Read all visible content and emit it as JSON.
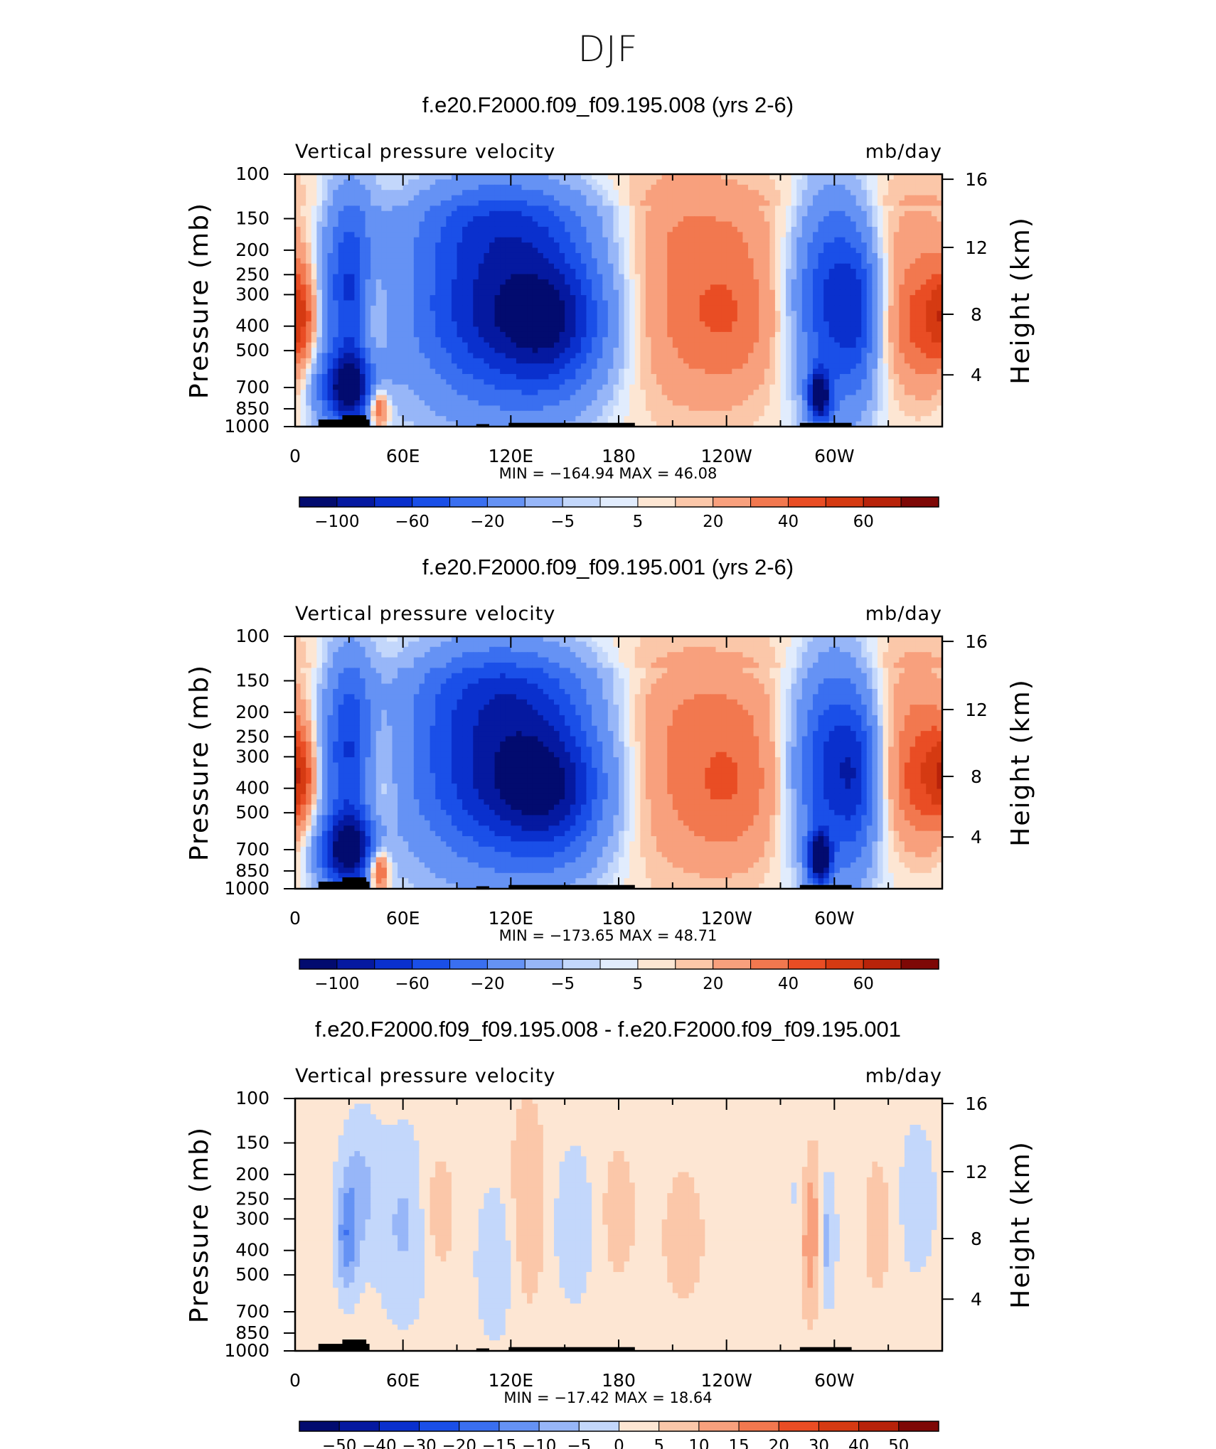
{
  "page_title": "DJF",
  "panel_subtitle": "Vertical pressure velocity",
  "panel_units": "mb/day",
  "chart_data": [
    {
      "type": "heatmap",
      "title": "f.e20.F2000.f09_f09.195.008 (yrs 2-6)",
      "subtitle_left": "Vertical pressure velocity",
      "subtitle_right": "mb/day",
      "ylabel": "Pressure (mb)",
      "ylabel_right": "Height (km)",
      "x_ticks": [
        "0",
        "60E",
        "120E",
        "180",
        "120W",
        "60W"
      ],
      "y_ticks": [
        "100",
        "150",
        "200",
        "250",
        "300",
        "400",
        "500",
        "700",
        "850",
        "1000"
      ],
      "y_right_ticks": [
        "16",
        "12",
        "8",
        "4"
      ],
      "stats": "MIN = −164.94   MAX =  46.08",
      "min": -164.94,
      "max": 46.08,
      "colorbar_labels": [
        "−100",
        "−60",
        "−20",
        "−5",
        "5",
        "20",
        "40",
        "60"
      ],
      "colorbar_levels": [
        -120,
        -100,
        -80,
        -60,
        -40,
        -20,
        -10,
        -5,
        0,
        5,
        10,
        20,
        30,
        40,
        50,
        60
      ]
    },
    {
      "type": "heatmap",
      "title": "f.e20.F2000.f09_f09.195.001 (yrs 2-6)",
      "subtitle_left": "Vertical pressure velocity",
      "subtitle_right": "mb/day",
      "ylabel": "Pressure (mb)",
      "ylabel_right": "Height (km)",
      "x_ticks": [
        "0",
        "60E",
        "120E",
        "180",
        "120W",
        "60W"
      ],
      "y_ticks": [
        "100",
        "150",
        "200",
        "250",
        "300",
        "400",
        "500",
        "700",
        "850",
        "1000"
      ],
      "y_right_ticks": [
        "16",
        "12",
        "8",
        "4"
      ],
      "stats": "MIN = −173.65   MAX =  48.71",
      "min": -173.65,
      "max": 48.71,
      "colorbar_labels": [
        "−100",
        "−60",
        "−20",
        "−5",
        "5",
        "20",
        "40",
        "60"
      ],
      "colorbar_levels": [
        -120,
        -100,
        -80,
        -60,
        -40,
        -20,
        -10,
        -5,
        0,
        5,
        10,
        20,
        30,
        40,
        50,
        60
      ]
    },
    {
      "type": "heatmap",
      "title": "f.e20.F2000.f09_f09.195.008 - f.e20.F2000.f09_f09.195.001",
      "subtitle_left": "Vertical pressure velocity",
      "subtitle_right": "mb/day",
      "ylabel": "Pressure (mb)",
      "ylabel_right": "Height (km)",
      "x_ticks": [
        "0",
        "60E",
        "120E",
        "180",
        "120W",
        "60W"
      ],
      "y_ticks": [
        "100",
        "150",
        "200",
        "250",
        "300",
        "400",
        "500",
        "700",
        "850",
        "1000"
      ],
      "y_right_ticks": [
        "16",
        "12",
        "8",
        "4"
      ],
      "stats": "MIN = −17.42   MAX =  18.64",
      "min": -17.42,
      "max": 18.64,
      "colorbar_labels": [
        "−50",
        "−40",
        "−30",
        "−20",
        "−15",
        "−10",
        "−5",
        "0",
        "5",
        "10",
        "15",
        "20",
        "30",
        "40",
        "50"
      ],
      "colorbar_levels": [
        -50,
        -40,
        -30,
        -20,
        -15,
        -10,
        -5,
        0,
        5,
        10,
        15,
        20,
        30,
        40,
        50
      ]
    }
  ],
  "colors": {
    "colormap": [
      "#020b6f",
      "#0519a0",
      "#0a30cd",
      "#1a4fe8",
      "#3a6ff0",
      "#6592f4",
      "#97b6f8",
      "#c3d7fb",
      "#e1ecfd",
      "#fde6d3",
      "#fbc7a9",
      "#f8a07d",
      "#f2784f",
      "#e94d24",
      "#d53a12",
      "#b8230a",
      "#7e0806"
    ],
    "land": "#000000"
  }
}
